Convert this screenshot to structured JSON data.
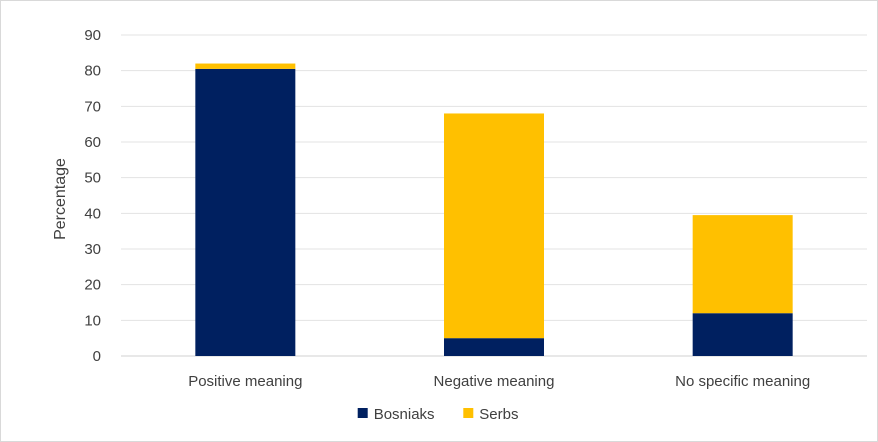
{
  "chart_data": {
    "type": "bar",
    "stacked": true,
    "categories": [
      "Positive meaning",
      "Negative meaning",
      "No specific meaning"
    ],
    "series": [
      {
        "name": "Bosniaks",
        "values": [
          80.5,
          5,
          12
        ],
        "color": "#002060"
      },
      {
        "name": "Serbs",
        "values": [
          1.5,
          63,
          27.5
        ],
        "color": "#ffc000"
      }
    ],
    "title": "",
    "xlabel": "",
    "ylabel": "Percentage",
    "ylim": [
      0,
      90
    ],
    "yticks": [
      0,
      10,
      20,
      30,
      40,
      50,
      60,
      70,
      80,
      90
    ],
    "grid": true,
    "legend_position": "bottom"
  }
}
